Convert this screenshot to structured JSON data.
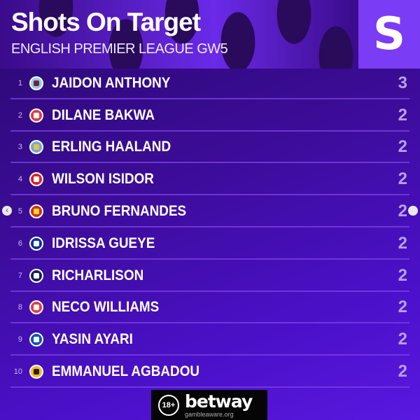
{
  "header": {
    "title": "Shots On Target",
    "subtitle": "ENGLISH PREMIER LEAGUE GW5",
    "logo_letter": "S"
  },
  "rows": [
    {
      "rank": "1",
      "name": "JAIDON ANTHONY",
      "value": "3",
      "badge_colors": [
        "#8ad0ee",
        "#7a1e3a"
      ]
    },
    {
      "rank": "2",
      "name": "DILANE BAKWA",
      "value": "2",
      "badge_colors": [
        "#e53b3b",
        "#ffffff"
      ]
    },
    {
      "rank": "3",
      "name": "ERLING HAALAND",
      "value": "2",
      "badge_colors": [
        "#6cabdd",
        "#f0c040"
      ]
    },
    {
      "rank": "4",
      "name": "WILSON ISIDOR",
      "value": "2",
      "badge_colors": [
        "#e02020",
        "#ffffff"
      ]
    },
    {
      "rank": "5",
      "name": "BRUNO FERNANDES",
      "value": "2",
      "badge_colors": [
        "#da291c",
        "#fbe122"
      ]
    },
    {
      "rank": "6",
      "name": "IDRISSA GUEYE",
      "value": "2",
      "badge_colors": [
        "#003399",
        "#ffffff"
      ]
    },
    {
      "rank": "7",
      "name": "RICHARLISON",
      "value": "2",
      "badge_colors": [
        "#132257",
        "#ffffff"
      ]
    },
    {
      "rank": "8",
      "name": "NECO WILLIAMS",
      "value": "2",
      "badge_colors": [
        "#e53b3b",
        "#ffffff"
      ]
    },
    {
      "rank": "9",
      "name": "YASIN AYARI",
      "value": "2",
      "badge_colors": [
        "#0057b8",
        "#ffffff"
      ]
    },
    {
      "rank": "10",
      "name": "EMMANUEL AGBADOU",
      "value": "2",
      "badge_colors": [
        "#fdb913",
        "#231f20"
      ]
    }
  ],
  "sponsor": {
    "age": "18+",
    "brand": "betway",
    "tagline": "gambleaware.org"
  },
  "carousel": {
    "prev_icon": "chevron-left-icon",
    "prev_glyph": "‹",
    "next_icon": "chevron-right-icon"
  }
}
